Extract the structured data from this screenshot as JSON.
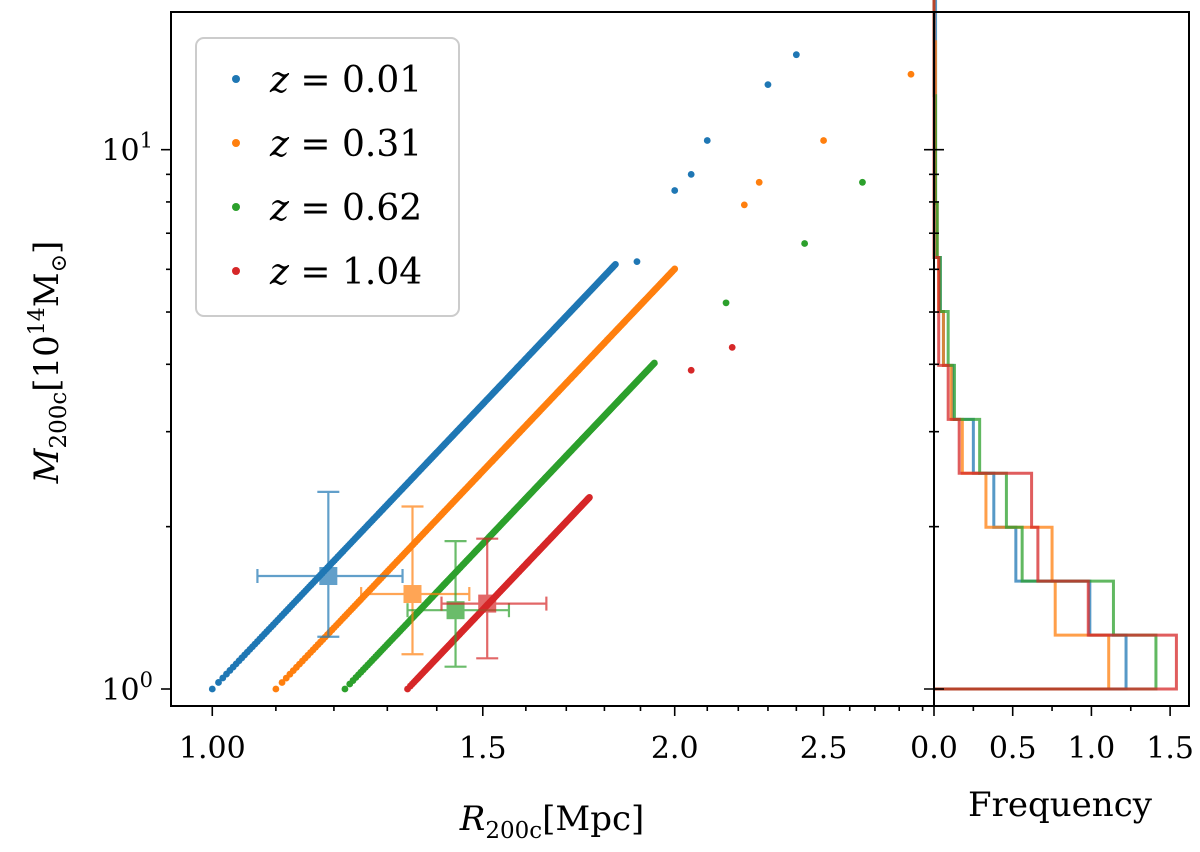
{
  "chart_data": [
    {
      "type": "scatter",
      "xlabel": "R_{200c}[Mpc]",
      "ylabel": "M_{200c}[10^{14}M_⊙]",
      "x_scale": "log",
      "y_scale": "log",
      "xlim": [
        0.94,
        2.95
      ],
      "ylim": [
        0.93,
        18.0
      ],
      "x_ticks": [
        {
          "value": 1.0,
          "label": "1.00"
        },
        {
          "value": 1.5,
          "label": "1.5"
        },
        {
          "value": 2.0,
          "label": "2.0"
        },
        {
          "value": 2.5,
          "label": "2.5"
        }
      ],
      "y_ticks": [
        {
          "value": 1,
          "label": "10^0"
        },
        {
          "value": 10,
          "label": "10^1"
        }
      ],
      "legend_position": "top-left",
      "series": [
        {
          "name": "z = 0.01",
          "color": "#1f77b4",
          "dense_band": {
            "x_from": 1.0,
            "x_to": 1.83,
            "slope": 3.0
          },
          "points": [
            [
              1.89,
              6.2
            ],
            [
              2.0,
              8.4
            ],
            [
              2.05,
              9.0
            ],
            [
              2.1,
              10.4
            ],
            [
              2.3,
              13.2
            ],
            [
              2.4,
              15.0
            ]
          ],
          "errorbar": {
            "x": 1.19,
            "y": 1.62,
            "xerr": [
              0.12,
              0.14
            ],
            "yerr": [
              0.37,
              0.7
            ]
          }
        },
        {
          "name": "z = 0.31",
          "color": "#ff7f0e",
          "dense_band": {
            "x_from": 1.1,
            "x_to": 2.0,
            "slope": 3.0
          },
          "points": [
            [
              2.22,
              7.9
            ],
            [
              2.27,
              8.7
            ],
            [
              2.5,
              10.4
            ],
            [
              2.85,
              13.8
            ]
          ],
          "errorbar": {
            "x": 1.35,
            "y": 1.5,
            "xerr": [
              0.1,
              0.12
            ],
            "yerr": [
              0.34,
              0.68
            ]
          }
        },
        {
          "name": "z = 0.62",
          "color": "#2ca02c",
          "dense_band": {
            "x_from": 1.22,
            "x_to": 1.94,
            "slope": 3.0
          },
          "points": [
            [
              2.16,
              5.2
            ],
            [
              2.43,
              6.7
            ],
            [
              2.65,
              8.7
            ]
          ],
          "errorbar": {
            "x": 1.44,
            "y": 1.4,
            "xerr": [
              0.1,
              0.12
            ],
            "yerr": [
              0.3,
              0.48
            ]
          }
        },
        {
          "name": "z = 1.04",
          "color": "#d62728",
          "dense_band": {
            "x_from": 1.34,
            "x_to": 1.76,
            "slope": 3.0
          },
          "points": [
            [
              2.05,
              3.9
            ],
            [
              2.18,
              4.3
            ]
          ],
          "errorbar": {
            "x": 1.51,
            "y": 1.44,
            "xerr": [
              0.1,
              0.14
            ],
            "yerr": [
              0.3,
              0.46
            ]
          }
        }
      ]
    },
    {
      "type": "histogram",
      "orientation": "horizontal",
      "xlabel": "Frequency",
      "xlim": [
        0.0,
        1.62
      ],
      "x_ticks": [
        0.0,
        0.25,
        0.5,
        0.75,
        1.0,
        1.25,
        1.5
      ],
      "x_tick_labels": [
        "0.0",
        "0.5",
        "1.0",
        "1.5"
      ],
      "shared_y_axis": "M_{200c}",
      "bins_log10_mass": [
        0.0,
        0.1,
        0.2,
        0.3,
        0.4,
        0.5,
        0.6,
        0.7,
        0.8,
        0.9,
        1.0,
        1.1,
        1.2,
        1.3
      ],
      "series": [
        {
          "name": "z = 0.01",
          "color": "#1f77b4",
          "values": [
            1.22,
            0.99,
            0.52,
            0.38,
            0.25,
            0.12,
            0.06,
            0.04,
            0.02,
            0.01,
            0.01,
            0.01,
            0.01
          ]
        },
        {
          "name": "z = 0.31",
          "color": "#ff7f0e",
          "values": [
            1.11,
            0.77,
            0.75,
            0.33,
            0.18,
            0.11,
            0.06,
            0.03,
            0.02,
            0.01,
            0.01,
            0.01,
            0.0
          ]
        },
        {
          "name": "z = 0.62",
          "color": "#2ca02c",
          "values": [
            1.41,
            1.14,
            0.56,
            0.46,
            0.29,
            0.13,
            0.09,
            0.04,
            0.02,
            0.01,
            0.01,
            0.0,
            0.0
          ]
        },
        {
          "name": "z = 1.04",
          "color": "#d62728",
          "values": [
            1.54,
            0.98,
            0.66,
            0.62,
            0.16,
            0.09,
            0.03,
            0.03,
            0.0,
            0.0,
            0.0,
            0.0,
            0.0
          ]
        }
      ]
    }
  ]
}
